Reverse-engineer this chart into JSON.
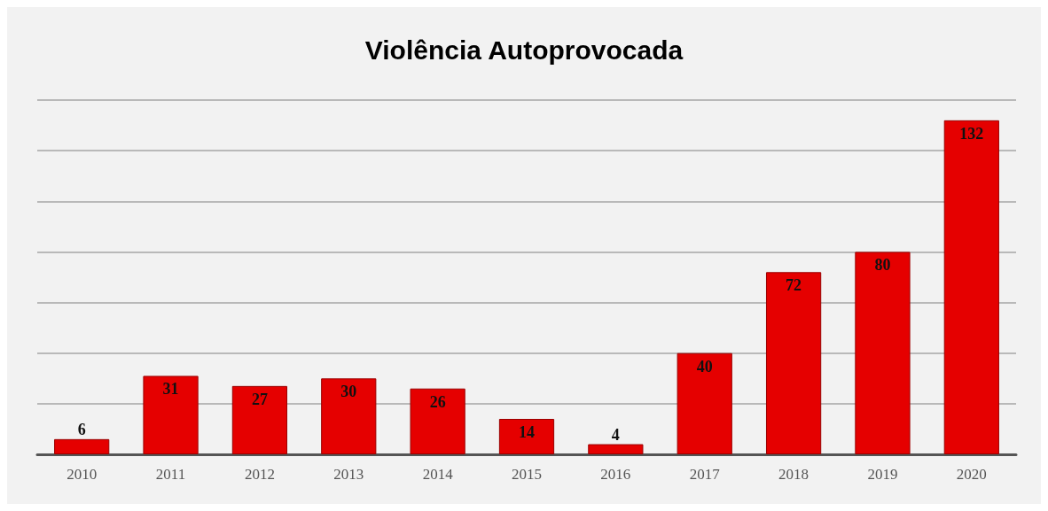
{
  "chart_data": {
    "type": "bar",
    "title": "Violência Autoprovocada",
    "categories": [
      "2010",
      "2011",
      "2012",
      "2013",
      "2014",
      "2015",
      "2016",
      "2017",
      "2018",
      "2019",
      "2020"
    ],
    "values": [
      6,
      31,
      27,
      30,
      26,
      14,
      4,
      40,
      72,
      80,
      132
    ],
    "color": "#e50000",
    "data_labels": true,
    "grid": "y",
    "tick_labels": "x",
    "ylim": [
      0,
      140
    ],
    "yticks": [
      {
        "value": 0,
        "label": null
      },
      {
        "value": 20,
        "label": null
      },
      {
        "value": 40,
        "label": null
      },
      {
        "value": 60,
        "label": null
      },
      {
        "value": 80,
        "label": null
      },
      {
        "value": 100,
        "label": null
      },
      {
        "value": 120,
        "label": null
      },
      {
        "value": 140,
        "label": null
      }
    ]
  }
}
